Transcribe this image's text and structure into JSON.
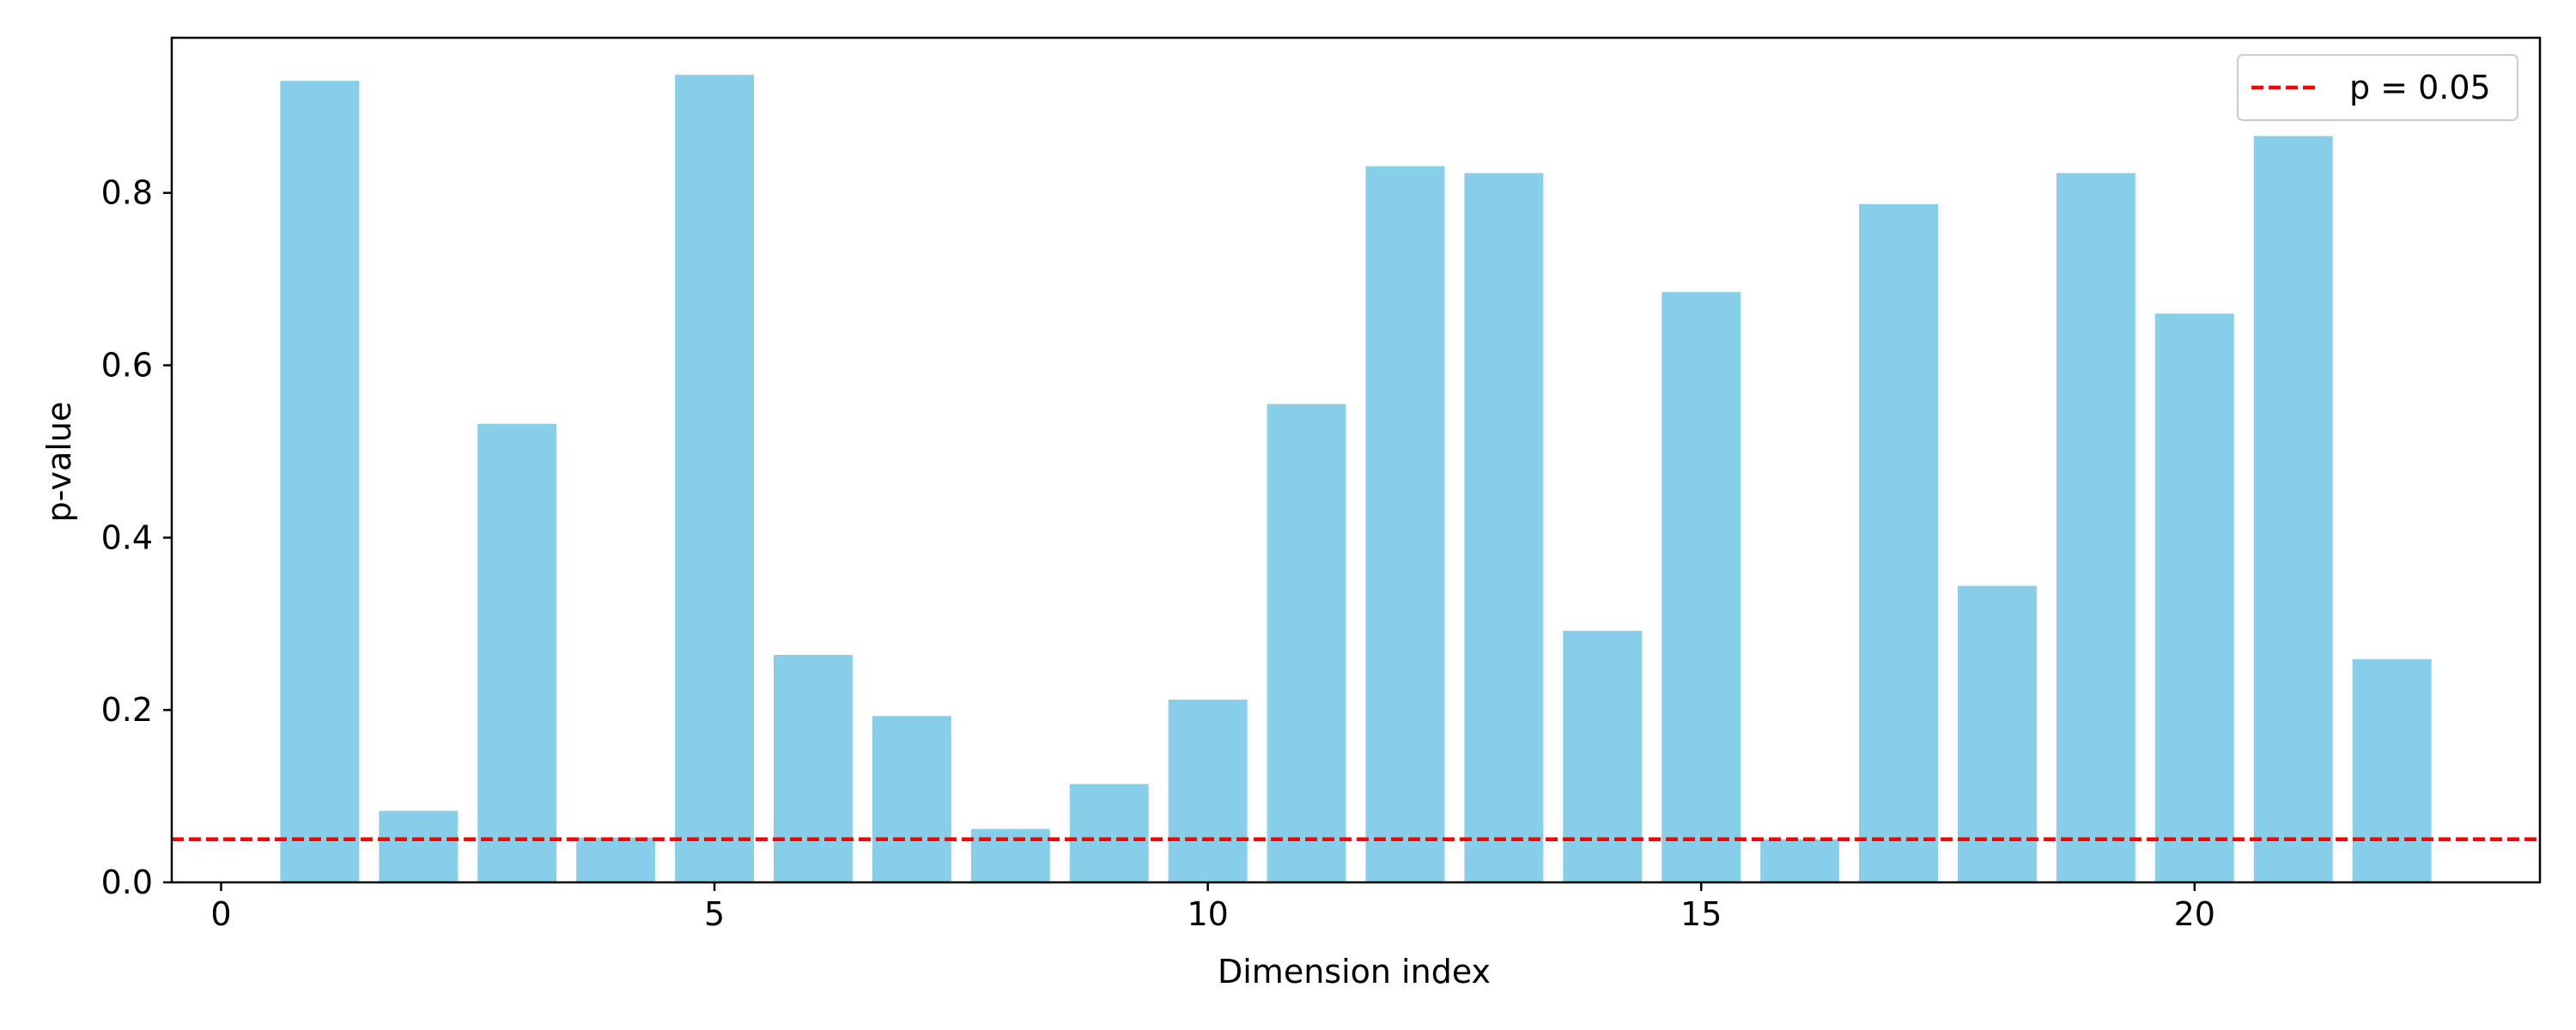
{
  "chart_data": {
    "type": "bar",
    "title": "",
    "xlabel": "Dimension index",
    "ylabel": "p-value",
    "categories": [
      1,
      2,
      3,
      4,
      5,
      6,
      7,
      8,
      9,
      10,
      11,
      12,
      13,
      14,
      15,
      16,
      17,
      18,
      19,
      20,
      21,
      22
    ],
    "values": [
      0.93,
      0.083,
      0.532,
      0.052,
      0.937,
      0.264,
      0.193,
      0.062,
      0.114,
      0.212,
      0.555,
      0.831,
      0.823,
      0.292,
      0.685,
      0.05,
      0.787,
      0.344,
      0.823,
      0.66,
      0.866,
      0.259
    ],
    "bar_color": "#87CEEB",
    "xlim": [
      -0.5,
      23.5
    ],
    "ylim": [
      0,
      0.98
    ],
    "xticks": [
      0,
      5,
      10,
      15,
      20
    ],
    "yticks": [
      0.0,
      0.2,
      0.4,
      0.6,
      0.8
    ],
    "xtick_labels": [
      "0",
      "5",
      "10",
      "15",
      "20"
    ],
    "ytick_labels": [
      "0.0",
      "0.2",
      "0.4",
      "0.6",
      "0.8"
    ],
    "threshold": {
      "value": 0.05,
      "label": "p = 0.05",
      "color": "#ff0000",
      "style": "dashed"
    },
    "legend": {
      "placement": "top-right",
      "entries": [
        "p = 0.05"
      ]
    },
    "grid": false
  }
}
